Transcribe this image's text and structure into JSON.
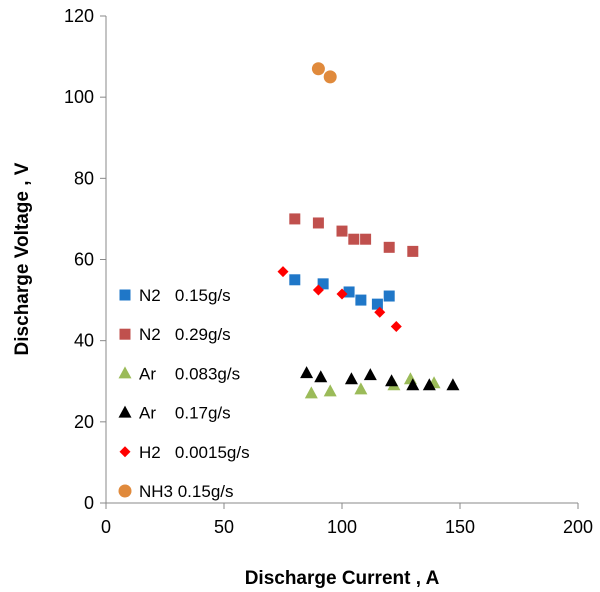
{
  "chart_data": {
    "type": "scatter",
    "title": "",
    "xlabel": "Discharge Current , A",
    "ylabel": "Discharge Voltage , V",
    "xlim": [
      0,
      200
    ],
    "ylim": [
      0,
      120
    ],
    "xticks": [
      0,
      50,
      100,
      150,
      200
    ],
    "yticks": [
      0,
      20,
      40,
      60,
      80,
      100,
      120
    ],
    "grid": false,
    "legend_position": "left",
    "series": [
      {
        "name": "N2   0.15g/s",
        "marker": "square",
        "color": "#1f77c8",
        "points": [
          [
            80,
            55
          ],
          [
            92,
            54
          ],
          [
            103,
            52
          ],
          [
            108,
            50
          ],
          [
            115,
            49
          ],
          [
            120,
            51
          ]
        ]
      },
      {
        "name": "N2   0.29g/s",
        "marker": "square",
        "color": "#c0504d",
        "points": [
          [
            80,
            70
          ],
          [
            90,
            69
          ],
          [
            100,
            67
          ],
          [
            105,
            65
          ],
          [
            110,
            65
          ],
          [
            120,
            63
          ],
          [
            130,
            62
          ]
        ]
      },
      {
        "name": "Ar    0.083g/s",
        "marker": "triangle",
        "color": "#9bbb59",
        "points": [
          [
            87,
            27
          ],
          [
            95,
            27.5
          ],
          [
            108,
            28
          ],
          [
            122,
            29
          ],
          [
            129,
            30.5
          ],
          [
            139,
            29.5
          ]
        ]
      },
      {
        "name": "Ar    0.17g/s",
        "marker": "triangle",
        "color": "#000000",
        "points": [
          [
            85,
            32
          ],
          [
            91,
            31
          ],
          [
            104,
            30.5
          ],
          [
            112,
            31.5
          ],
          [
            121,
            30
          ],
          [
            130,
            29
          ],
          [
            137,
            29
          ],
          [
            147,
            29
          ]
        ]
      },
      {
        "name": "H2   0.0015g/s",
        "marker": "diamond",
        "color": "#ff0000",
        "points": [
          [
            75,
            57
          ],
          [
            90,
            52.5
          ],
          [
            100,
            51.5
          ],
          [
            116,
            47
          ],
          [
            123,
            43.5
          ]
        ]
      },
      {
        "name": "NH3 0.15g/s",
        "marker": "circle",
        "color": "#e08a3c",
        "points": [
          [
            90,
            107
          ],
          [
            95,
            105
          ]
        ]
      }
    ]
  }
}
